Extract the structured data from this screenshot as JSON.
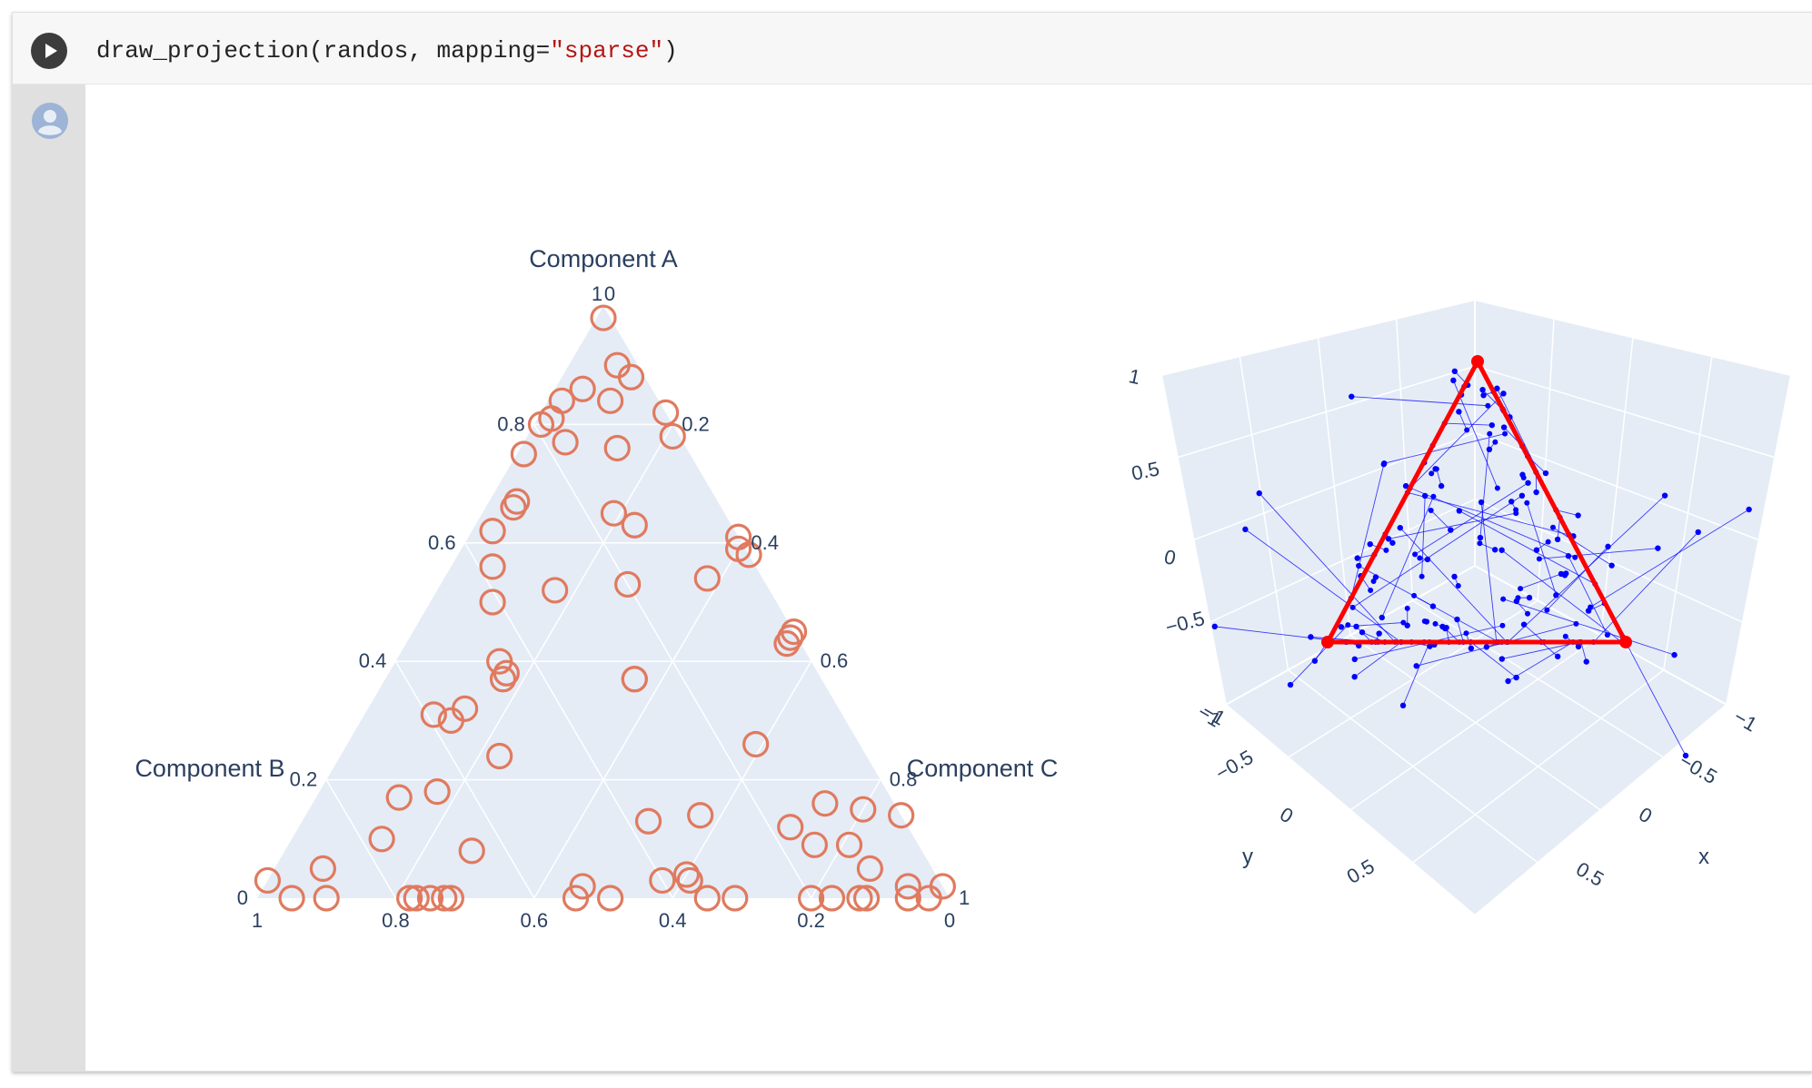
{
  "notebook": {
    "code": {
      "func": "draw_projection(randos, mapping=",
      "arg": "\"sparse\"",
      "close": ")"
    },
    "run_button_label": "Run cell"
  },
  "ternary": {
    "axis_a_title": "Component A",
    "axis_b_title": "Component B",
    "axis_c_title": "Component C",
    "a_ticks": [
      "0",
      "0.2",
      "0.4",
      "0.6",
      "0.8",
      "1"
    ],
    "b_ticks": [
      "1",
      "0.8",
      "0.6",
      "0.4",
      "0.2",
      "0"
    ],
    "c_ticks": [
      "0",
      "0.2",
      "0.4",
      "0.6",
      "0.8",
      "1"
    ],
    "marker_color": "#e07a5f",
    "bg_color": "#e5ecf6"
  },
  "scene3d": {
    "z_ticks": [
      "1",
      "0.5",
      "0",
      "−0.5",
      "−1"
    ],
    "y_ticks": [
      "−1",
      "−0.5",
      "0",
      "0.5"
    ],
    "x_ticks": [
      "−1",
      "−0.5",
      "0",
      "0.5"
    ],
    "y_title": "y",
    "x_title": "x",
    "triangle_color": "#ff0000",
    "point_color": "#0000ff"
  },
  "chart_data": [
    {
      "type": "scatter",
      "subtype": "ternary",
      "title": "",
      "axes": [
        "Component A",
        "Component B",
        "Component C"
      ],
      "points_abc": [
        [
          0.98,
          0.01,
          0.01
        ],
        [
          0.9,
          0.03,
          0.07
        ],
        [
          0.88,
          0.02,
          0.1
        ],
        [
          0.86,
          0.1,
          0.04
        ],
        [
          0.84,
          0.07,
          0.09
        ],
        [
          0.84,
          0.14,
          0.02
        ],
        [
          0.82,
          0.0,
          0.18
        ],
        [
          0.81,
          0.17,
          0.02
        ],
        [
          0.8,
          0.19,
          0.01
        ],
        [
          0.78,
          0.01,
          0.21
        ],
        [
          0.77,
          0.17,
          0.06
        ],
        [
          0.76,
          0.1,
          0.14
        ],
        [
          0.75,
          0.24,
          0.01
        ],
        [
          0.67,
          0.29,
          0.04
        ],
        [
          0.66,
          0.3,
          0.04
        ],
        [
          0.65,
          0.16,
          0.19
        ],
        [
          0.63,
          0.14,
          0.23
        ],
        [
          0.62,
          0.35,
          0.03
        ],
        [
          0.61,
          0.0,
          0.39
        ],
        [
          0.59,
          0.01,
          0.4
        ],
        [
          0.58,
          0.0,
          0.42
        ],
        [
          0.56,
          0.38,
          0.06
        ],
        [
          0.54,
          0.08,
          0.38
        ],
        [
          0.53,
          0.2,
          0.27
        ],
        [
          0.52,
          0.31,
          0.17
        ],
        [
          0.5,
          0.41,
          0.09
        ],
        [
          0.45,
          0.0,
          0.55
        ],
        [
          0.44,
          0.01,
          0.55
        ],
        [
          0.43,
          0.02,
          0.55
        ],
        [
          0.4,
          0.45,
          0.15
        ],
        [
          0.38,
          0.45,
          0.17
        ],
        [
          0.37,
          0.46,
          0.17
        ],
        [
          0.37,
          0.27,
          0.36
        ],
        [
          0.37,
          0.27,
          0.36
        ],
        [
          0.32,
          0.54,
          0.14
        ],
        [
          0.31,
          0.59,
          0.1
        ],
        [
          0.3,
          0.57,
          0.13
        ],
        [
          0.26,
          0.15,
          0.59
        ],
        [
          0.24,
          0.53,
          0.23
        ],
        [
          0.18,
          0.65,
          0.17
        ],
        [
          0.17,
          0.71,
          0.12
        ],
        [
          0.16,
          0.1,
          0.74
        ],
        [
          0.15,
          0.05,
          0.8
        ],
        [
          0.14,
          0.0,
          0.86
        ],
        [
          0.14,
          0.29,
          0.57
        ],
        [
          0.13,
          0.37,
          0.5
        ],
        [
          0.12,
          0.17,
          0.71
        ],
        [
          0.1,
          0.77,
          0.13
        ],
        [
          0.09,
          0.15,
          0.76
        ],
        [
          0.09,
          0.1,
          0.81
        ],
        [
          0.08,
          0.65,
          0.27
        ],
        [
          0.05,
          0.09,
          0.86
        ],
        [
          0.05,
          0.88,
          0.07
        ],
        [
          0.04,
          0.36,
          0.6
        ],
        [
          0.03,
          0.97,
          0.0
        ],
        [
          0.03,
          0.36,
          0.61
        ],
        [
          0.03,
          0.4,
          0.57
        ],
        [
          0.02,
          0.05,
          0.93
        ],
        [
          0.02,
          0.0,
          0.98
        ],
        [
          0.02,
          0.52,
          0.46
        ],
        [
          0.0,
          0.95,
          0.05
        ],
        [
          0.0,
          0.9,
          0.1
        ],
        [
          0.0,
          0.78,
          0.22
        ],
        [
          0.0,
          0.77,
          0.23
        ],
        [
          0.0,
          0.75,
          0.25
        ],
        [
          0.0,
          0.73,
          0.27
        ],
        [
          0.0,
          0.72,
          0.28
        ],
        [
          0.0,
          0.54,
          0.46
        ],
        [
          0.0,
          0.49,
          0.51
        ],
        [
          0.0,
          0.35,
          0.65
        ],
        [
          0.0,
          0.31,
          0.69
        ],
        [
          0.0,
          0.2,
          0.8
        ],
        [
          0.0,
          0.17,
          0.83
        ],
        [
          0.0,
          0.13,
          0.87
        ],
        [
          0.0,
          0.12,
          0.88
        ],
        [
          0.0,
          0.06,
          0.94
        ],
        [
          0.0,
          0.03,
          0.97
        ]
      ]
    },
    {
      "type": "scatter",
      "subtype": "scatter3d",
      "title": "",
      "xlabel": "x",
      "ylabel": "y",
      "zlabel": "",
      "xlim": [
        -1,
        1
      ],
      "ylim": [
        -1,
        1
      ],
      "zlim": [
        -1,
        1
      ],
      "triangle_vertices": [
        [
          0,
          0,
          1
        ],
        [
          -1,
          1,
          -0.5
        ],
        [
          1,
          -1,
          -0.5
        ]
      ]
    }
  ]
}
